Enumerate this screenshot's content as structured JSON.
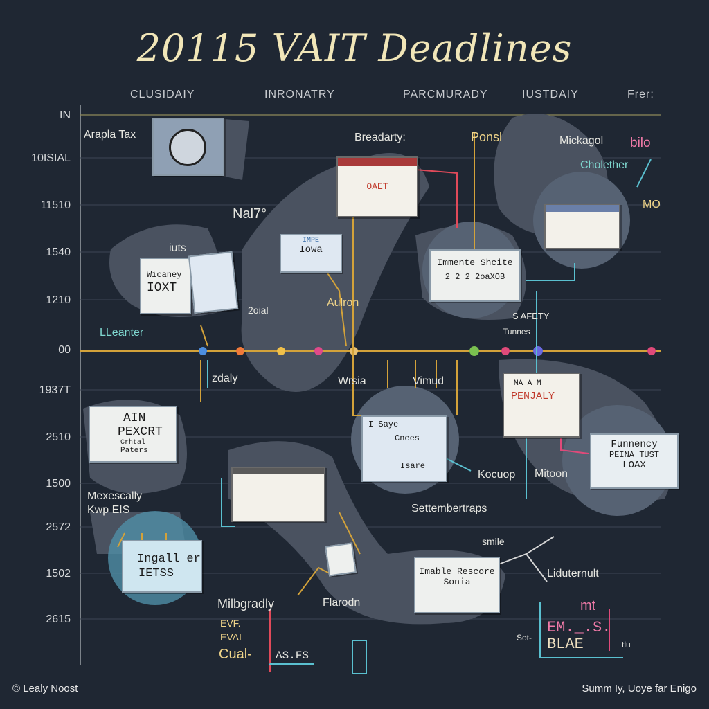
{
  "title": "20115 VAIT Deadlines",
  "columns": [
    "CLUSIDAIY",
    "INRONATRY",
    "PARCMURADY",
    "IUSTDAIY",
    "Frer:"
  ],
  "rows": [
    "IN",
    "10ISIAL",
    "11510",
    "1540",
    "1210",
    "00",
    "1937T",
    "2510",
    "1500",
    "2572",
    "1502",
    "2615"
  ],
  "labels": {
    "apapla_tax": "Arapla Tax",
    "breadarty": "Breadarty:",
    "ponsl": "Ponsl",
    "mickagol": "Mickagol",
    "bilo": "bilo",
    "cholether": "Cholether",
    "mo": "MO",
    "nai7": "Nal7°",
    "iuts": "iuts",
    "aulron": "Aulron",
    "zoial": "2oial",
    "leanter": "LLeanter",
    "s_afety": "S AFETY",
    "tunnes": "Tunnes",
    "zdaly": "zdaly",
    "wrsia": "Wrsia",
    "vimud": "Vimud",
    "kocuop": "Kocuop",
    "mitoon": "Mitoon",
    "mexescally": "Mexescally",
    "kwp_eis": "Kwp EIS",
    "settembertraps": "Settembertraps",
    "smile": "smile",
    "liduternult": "Liduternult",
    "milbgradly": "Milbgradly",
    "flarodn": "Flarodn",
    "evf": "EVF.",
    "evai": "EVAI",
    "cual": "Cual-",
    "as_fs": "AS.FS",
    "emt": "EM._.S.",
    "mt": "mt",
    "blae": "BLAE",
    "sot": "Sot-",
    "tlu": "tlu"
  },
  "cards": {
    "iowa": "Iowa",
    "iowa_top": "IMPE",
    "wicaney": "Wicaney",
    "loxt": "IOXT",
    "oaet": "OAET",
    "immente_title": "Immente Shcite",
    "immente_sub": "2 2 2 2oaXOB",
    "ain": "AIN",
    "pexcrt": "PEXCRT",
    "crhtal": "Crhtal",
    "paters": "Paters",
    "i_saye": "I Saye",
    "cnees": "Cnees",
    "isare": "Isare",
    "penjaly": "PENJALY",
    "funnency": "Funnency",
    "peina_tust": "PEINA TUST",
    "loax": "LOAX",
    "ingaller": "Ingall er",
    "ietss": "IETSS",
    "imable_title": "Imable Rescore",
    "imable_sub": "Sonia",
    "ma": "MA A M"
  },
  "footer": {
    "left": "© Lealy Noost",
    "right": "Summ Iy, Uoye far Enigo"
  }
}
